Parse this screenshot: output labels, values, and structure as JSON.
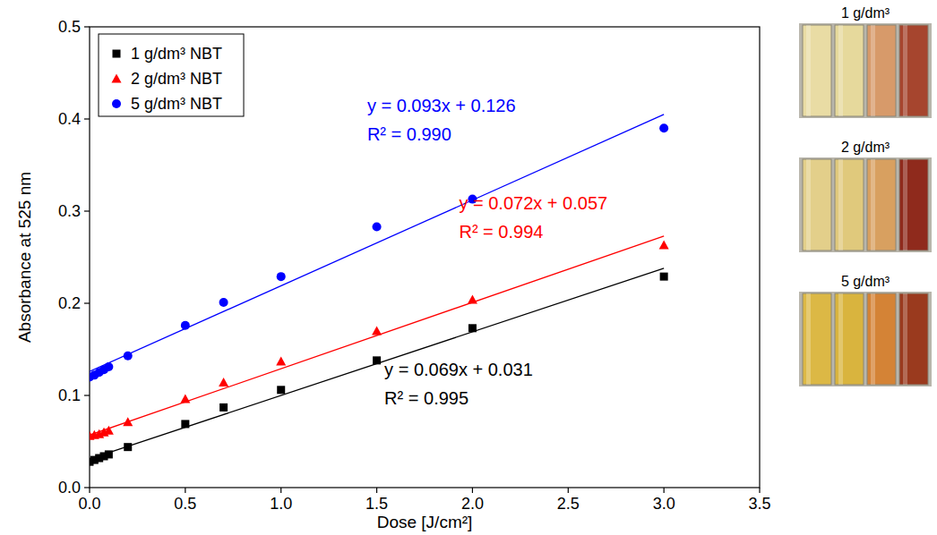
{
  "chart_data": {
    "type": "scatter",
    "x_label": "Dose [J/cm²]",
    "y_label": "Absorbance at 525 nm",
    "xlim": [
      0,
      3.5
    ],
    "xticks": [
      {
        "value": 0,
        "label": "0.0"
      },
      0.5,
      {
        "value": 1,
        "label": "1.0"
      },
      1.5,
      {
        "value": 2,
        "label": "2.0"
      },
      2.5,
      {
        "value": 3,
        "label": "3.0"
      },
      3.5
    ],
    "ylim": [
      0,
      0.5
    ],
    "yticks": [
      {
        "value": 0,
        "label": "0.0"
      },
      0.1,
      0.2,
      0.3,
      0.4,
      0.5
    ],
    "grid": false,
    "legend": "upper left",
    "series": [
      {
        "name": "1 g/dm³ NBT",
        "color": "#000000",
        "marker": "square",
        "x": [
          0,
          0.025,
          0.05,
          0.075,
          0.1,
          0.2,
          0.5,
          0.7,
          1.0,
          1.5,
          2.0,
          3.0
        ],
        "values": [
          0.028,
          0.03,
          0.032,
          0.034,
          0.036,
          0.044,
          0.069,
          0.087,
          0.106,
          0.138,
          0.173,
          0.229
        ],
        "fit": {
          "slope": 0.069,
          "intercept": 0.031,
          "equation": "y = 0.069x + 0.031",
          "r2": "R² = 0.995"
        }
      },
      {
        "name": "2 g/dm³ NBT",
        "color": "#ff0000",
        "marker": "triangle",
        "x": [
          0,
          0.025,
          0.05,
          0.075,
          0.1,
          0.2,
          0.5,
          0.7,
          1.0,
          1.5,
          2.0,
          3.0
        ],
        "values": [
          0.056,
          0.057,
          0.058,
          0.06,
          0.062,
          0.071,
          0.096,
          0.114,
          0.137,
          0.17,
          0.204,
          0.263
        ],
        "fit": {
          "slope": 0.072,
          "intercept": 0.057,
          "equation": "y = 0.072x + 0.057",
          "r2": "R² = 0.994"
        }
      },
      {
        "name": "5 g/dm³ NBT",
        "color": "#0000ff",
        "marker": "circle",
        "x": [
          0,
          0.025,
          0.05,
          0.075,
          0.1,
          0.2,
          0.5,
          0.7,
          1.0,
          1.5,
          2.0,
          3.0
        ],
        "values": [
          0.12,
          0.122,
          0.125,
          0.128,
          0.131,
          0.143,
          0.176,
          0.201,
          0.229,
          0.283,
          0.313,
          0.39
        ],
        "fit": {
          "slope": 0.093,
          "intercept": 0.126,
          "equation": "y = 0.093x + 0.126",
          "r2": "R² = 0.990"
        }
      }
    ]
  },
  "photos": {
    "labels": [
      "1 g/dm³",
      "2 g/dm³",
      "5 g/dm³"
    ]
  }
}
